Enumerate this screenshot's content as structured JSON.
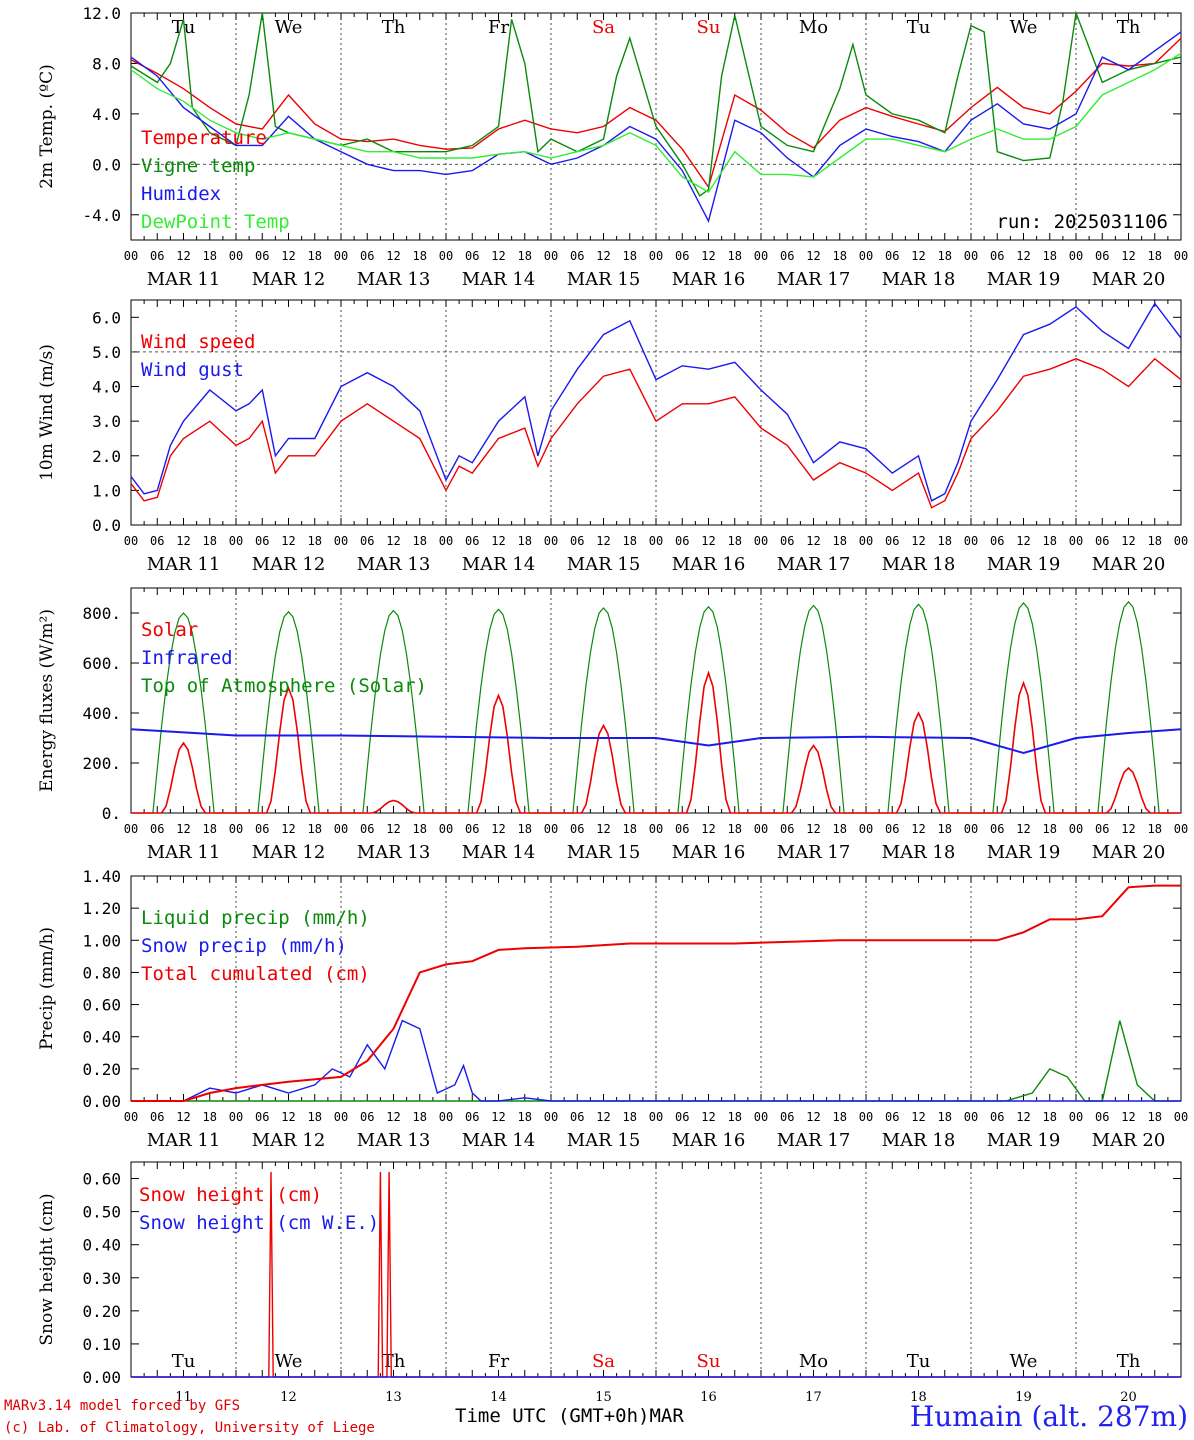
{
  "run_label": "run: 2025031106",
  "day_abbrev": [
    "Tu",
    "We",
    "Th",
    "Fr",
    "Sa",
    "Su",
    "Mo",
    "Tu",
    "We",
    "Th"
  ],
  "day_colors": [
    "#000000",
    "#000000",
    "#000000",
    "#000000",
    "#ee0000",
    "#ee0000",
    "#000000",
    "#000000",
    "#000000",
    "#000000"
  ],
  "dates": [
    "MAR 11",
    "MAR 12",
    "MAR 13",
    "MAR 14",
    "MAR 15",
    "MAR 16",
    "MAR 17",
    "MAR 18",
    "MAR 19",
    "MAR 20"
  ],
  "hour_ticks": [
    "00",
    "06",
    "12",
    "18"
  ],
  "bottom_day_numbers": [
    "11",
    "12",
    "13",
    "14",
    "15",
    "16",
    "17",
    "18",
    "19",
    "20"
  ],
  "footer": {
    "model": "MARv3.14 model forced by GFS",
    "copyright": "(c) Lab. of Climatology, University of Liege",
    "axis_title": "Time UTC (GMT+0h)",
    "month": "MAR",
    "station": "Humain (alt. 287m)"
  },
  "chart_data": [
    {
      "type": "line",
      "ylabel": "2m Temp. (ºC)",
      "ylim": [
        -6,
        12
      ],
      "yticks": [
        "12.0",
        "8.0",
        "4.0",
        "0.0",
        "-4.0"
      ],
      "ytick_values": [
        12,
        8,
        4,
        0,
        -4
      ],
      "ref_line": 0,
      "x": "hours since MAR 11 00 UTC",
      "series": [
        {
          "name": "Temperature",
          "color": "#ee0000",
          "x": [
            0,
            6,
            12,
            18,
            24,
            30,
            36,
            42,
            48,
            54,
            60,
            66,
            72,
            78,
            84,
            90,
            96,
            102,
            108,
            114,
            120,
            126,
            132,
            138,
            144,
            150,
            156,
            162,
            168,
            174,
            180,
            186,
            192,
            198,
            204,
            210,
            216,
            222,
            228,
            234,
            240
          ],
          "values": [
            8.3,
            7.2,
            6.0,
            4.5,
            3.2,
            2.8,
            5.5,
            3.2,
            2.0,
            1.8,
            2.0,
            1.5,
            1.2,
            1.3,
            2.8,
            3.5,
            2.8,
            2.5,
            3.0,
            4.5,
            3.5,
            1.2,
            -1.8,
            5.5,
            4.3,
            2.5,
            1.3,
            3.5,
            4.5,
            3.8,
            3.2,
            2.6,
            4.5,
            6.1,
            4.5,
            4.0,
            5.8,
            8.0,
            7.8,
            8.0,
            10.0
          ]
        },
        {
          "name": "Vigne temp",
          "color": "#0a8a0a",
          "x": [
            0,
            6,
            9,
            12,
            14,
            18,
            24,
            27,
            30,
            33,
            36,
            42,
            48,
            54,
            60,
            66,
            72,
            78,
            84,
            87,
            90,
            93,
            96,
            102,
            108,
            111,
            114,
            120,
            126,
            130,
            132,
            135,
            138,
            144,
            150,
            156,
            162,
            165,
            168,
            174,
            180,
            186,
            189,
            192,
            195,
            198,
            204,
            210,
            213,
            216,
            222,
            228,
            234,
            240
          ],
          "values": [
            7.8,
            6.5,
            8.0,
            11.5,
            4.5,
            2.5,
            1.5,
            5.5,
            12.0,
            3.0,
            2.5,
            2.0,
            1.5,
            2.0,
            1.0,
            1.0,
            1.0,
            1.5,
            3.0,
            11.5,
            8.0,
            1.0,
            2.0,
            1.0,
            2.0,
            7.0,
            10.0,
            3.0,
            0.0,
            -2.5,
            -2.0,
            7.0,
            11.8,
            3.0,
            1.5,
            1.0,
            6.0,
            9.5,
            5.5,
            4.0,
            3.5,
            2.5,
            7.0,
            11.0,
            10.5,
            1.0,
            0.3,
            0.5,
            5.0,
            12.0,
            6.5,
            7.5,
            8.0,
            8.5
          ]
        },
        {
          "name": "Humidex",
          "color": "#1a1aee",
          "x": [
            0,
            6,
            12,
            18,
            24,
            30,
            36,
            42,
            48,
            54,
            60,
            66,
            72,
            78,
            84,
            90,
            96,
            102,
            108,
            114,
            120,
            126,
            132,
            138,
            144,
            150,
            156,
            162,
            168,
            174,
            180,
            186,
            192,
            198,
            204,
            210,
            216,
            222,
            228,
            234,
            240
          ],
          "values": [
            8.5,
            7.0,
            4.5,
            3.0,
            1.5,
            1.5,
            3.8,
            2.0,
            1.0,
            0.0,
            -0.5,
            -0.5,
            -0.8,
            -0.5,
            0.8,
            1.0,
            0.0,
            0.5,
            1.5,
            3.0,
            2.0,
            -0.5,
            -4.5,
            3.5,
            2.5,
            0.5,
            -1.0,
            1.5,
            2.8,
            2.2,
            1.8,
            1.0,
            3.5,
            4.8,
            3.2,
            2.8,
            4.0,
            8.5,
            7.5,
            9.0,
            10.5
          ]
        },
        {
          "name": "DewPoint Temp",
          "color": "#33ee33",
          "x": [
            0,
            6,
            12,
            18,
            24,
            30,
            36,
            42,
            48,
            54,
            60,
            66,
            72,
            78,
            84,
            90,
            96,
            102,
            108,
            114,
            120,
            126,
            132,
            138,
            144,
            150,
            156,
            162,
            168,
            174,
            180,
            186,
            192,
            198,
            204,
            210,
            216,
            222,
            228,
            234,
            240
          ],
          "values": [
            7.5,
            6.0,
            5.0,
            3.5,
            2.5,
            2.0,
            2.5,
            2.0,
            1.5,
            1.0,
            1.0,
            0.5,
            0.5,
            0.5,
            0.8,
            1.0,
            0.5,
            1.0,
            1.5,
            2.5,
            1.5,
            -1.0,
            -2.2,
            1.0,
            -0.8,
            -0.8,
            -1.0,
            0.5,
            2.0,
            2.0,
            1.5,
            1.0,
            2.0,
            2.8,
            2.0,
            2.0,
            3.0,
            5.5,
            6.5,
            7.5,
            8.8
          ]
        }
      ]
    },
    {
      "type": "line",
      "ylabel": "10m Wind (m/s)",
      "ylim": [
        0,
        6.5
      ],
      "yticks": [
        "6.0",
        "5.0",
        "4.0",
        "3.0",
        "2.0",
        "1.0",
        "0.0"
      ],
      "ytick_values": [
        6,
        5,
        4,
        3,
        2,
        1,
        0
      ],
      "ref_line": 5,
      "series": [
        {
          "name": "Wind speed",
          "color": "#ee0000",
          "x": [
            0,
            3,
            6,
            9,
            12,
            18,
            24,
            27,
            30,
            33,
            36,
            42,
            48,
            54,
            60,
            66,
            72,
            75,
            78,
            84,
            90,
            93,
            96,
            102,
            108,
            114,
            120,
            126,
            132,
            138,
            144,
            150,
            156,
            162,
            168,
            174,
            180,
            183,
            186,
            189,
            192,
            198,
            204,
            210,
            216,
            222,
            228,
            234,
            240
          ],
          "values": [
            1.2,
            0.7,
            0.8,
            2.0,
            2.5,
            3.0,
            2.3,
            2.5,
            3.0,
            1.5,
            2.0,
            2.0,
            3.0,
            3.5,
            3.0,
            2.5,
            1.0,
            1.7,
            1.5,
            2.5,
            2.8,
            1.7,
            2.5,
            3.5,
            4.3,
            4.5,
            3.0,
            3.5,
            3.5,
            3.7,
            2.8,
            2.3,
            1.3,
            1.8,
            1.5,
            1.0,
            1.5,
            0.5,
            0.7,
            1.5,
            2.5,
            3.3,
            4.3,
            4.5,
            4.8,
            4.5,
            4.0,
            4.8,
            4.2
          ]
        },
        {
          "name": "Wind gust",
          "color": "#1a1aee",
          "x": [
            0,
            3,
            6,
            9,
            12,
            18,
            24,
            27,
            30,
            33,
            36,
            42,
            48,
            54,
            60,
            66,
            72,
            75,
            78,
            84,
            90,
            93,
            96,
            102,
            108,
            114,
            120,
            126,
            132,
            138,
            144,
            150,
            156,
            162,
            168,
            174,
            180,
            183,
            186,
            189,
            192,
            198,
            204,
            210,
            216,
            222,
            228,
            234,
            240
          ],
          "values": [
            1.4,
            0.9,
            1.0,
            2.3,
            3.0,
            3.9,
            3.3,
            3.5,
            3.9,
            2.0,
            2.5,
            2.5,
            4.0,
            4.4,
            4.0,
            3.3,
            1.3,
            2.0,
            1.8,
            3.0,
            3.7,
            2.0,
            3.3,
            4.5,
            5.5,
            5.9,
            4.2,
            4.6,
            4.5,
            4.7,
            3.9,
            3.2,
            1.8,
            2.4,
            2.2,
            1.5,
            2.0,
            0.7,
            0.9,
            1.8,
            3.0,
            4.2,
            5.5,
            5.8,
            6.3,
            5.6,
            5.1,
            6.4,
            5.4
          ]
        }
      ]
    },
    {
      "type": "line",
      "ylabel": "Energy fluxes (W/m²)",
      "ylim": [
        0,
        900
      ],
      "yticks": [
        "800.",
        "600.",
        "400.",
        "200.",
        "0."
      ],
      "ytick_values": [
        800,
        600,
        400,
        200,
        0
      ],
      "toa_peaks": [
        800,
        805,
        810,
        815,
        820,
        825,
        830,
        835,
        840,
        845
      ],
      "solar_peaks": [
        280,
        500,
        50,
        470,
        350,
        560,
        270,
        400,
        520,
        180
      ],
      "series": [
        {
          "name": "Solar",
          "color": "#ee0000"
        },
        {
          "name": "Infrared",
          "color": "#1a1aee",
          "x": [
            0,
            24,
            48,
            72,
            96,
            120,
            132,
            144,
            168,
            192,
            204,
            216,
            228,
            240
          ],
          "values": [
            335,
            310,
            310,
            305,
            300,
            300,
            270,
            300,
            305,
            300,
            240,
            300,
            320,
            335
          ]
        },
        {
          "name": "Top of Atmosphere (Solar)",
          "color": "#0a8a0a"
        }
      ]
    },
    {
      "type": "line",
      "ylabel": "Precip (mm/h)",
      "ylim": [
        0,
        1.4
      ],
      "yticks": [
        "1.40",
        "1.20",
        "1.00",
        "0.80",
        "0.60",
        "0.40",
        "0.20",
        "0.00"
      ],
      "ytick_values": [
        1.4,
        1.2,
        1.0,
        0.8,
        0.6,
        0.4,
        0.2,
        0.0
      ],
      "series": [
        {
          "name": "Liquid precip (mm/h)",
          "color": "#0a8a0a",
          "x": [
            0,
            200,
            206,
            210,
            214,
            218,
            222,
            226,
            230,
            234,
            240
          ],
          "values": [
            0,
            0,
            0.05,
            0.2,
            0.15,
            0,
            0,
            0.5,
            0.1,
            0,
            0
          ]
        },
        {
          "name": "Snow precip (mm/h)",
          "color": "#1a1aee",
          "x": [
            0,
            12,
            18,
            24,
            30,
            36,
            42,
            46,
            50,
            54,
            58,
            62,
            66,
            70,
            74,
            76,
            78,
            80,
            84,
            90,
            96,
            240
          ],
          "values": [
            0,
            0,
            0.08,
            0.05,
            0.1,
            0.05,
            0.1,
            0.2,
            0.15,
            0.35,
            0.2,
            0.5,
            0.45,
            0.05,
            0.1,
            0.22,
            0.05,
            0,
            0,
            0.02,
            0,
            0
          ]
        },
        {
          "name": "Total cumulated (cm)",
          "color": "#ee0000",
          "x": [
            0,
            12,
            18,
            24,
            36,
            48,
            54,
            60,
            66,
            72,
            78,
            84,
            90,
            102,
            114,
            126,
            138,
            150,
            162,
            174,
            186,
            198,
            204,
            210,
            216,
            222,
            228,
            234,
            240
          ],
          "values": [
            0,
            0,
            0.05,
            0.08,
            0.12,
            0.15,
            0.25,
            0.45,
            0.8,
            0.85,
            0.87,
            0.94,
            0.95,
            0.96,
            0.98,
            0.98,
            0.98,
            0.99,
            1.0,
            1.0,
            1.0,
            1.0,
            1.05,
            1.13,
            1.13,
            1.15,
            1.33,
            1.34,
            1.34
          ]
        }
      ]
    },
    {
      "type": "line",
      "ylabel": "Snow height (cm)",
      "ylim": [
        0,
        0.65
      ],
      "yticks": [
        "0.60",
        "0.50",
        "0.40",
        "0.30",
        "0.20",
        "0.10",
        "0.00"
      ],
      "ytick_values": [
        0.6,
        0.5,
        0.4,
        0.3,
        0.2,
        0.1,
        0.0
      ],
      "series": [
        {
          "name": "Snow height (cm)",
          "color": "#ee0000",
          "x": [
            0,
            31.5,
            32,
            32.5,
            56.5,
            57,
            57.5,
            58.5,
            59,
            59.5,
            240
          ],
          "values": [
            0,
            0,
            0.62,
            0,
            0,
            0.62,
            0,
            0,
            0.62,
            0,
            0
          ]
        },
        {
          "name": "Snow height (cm W.E.)",
          "color": "#1a1aee",
          "x": [
            0,
            240
          ],
          "values": [
            0,
            0
          ]
        }
      ]
    }
  ]
}
